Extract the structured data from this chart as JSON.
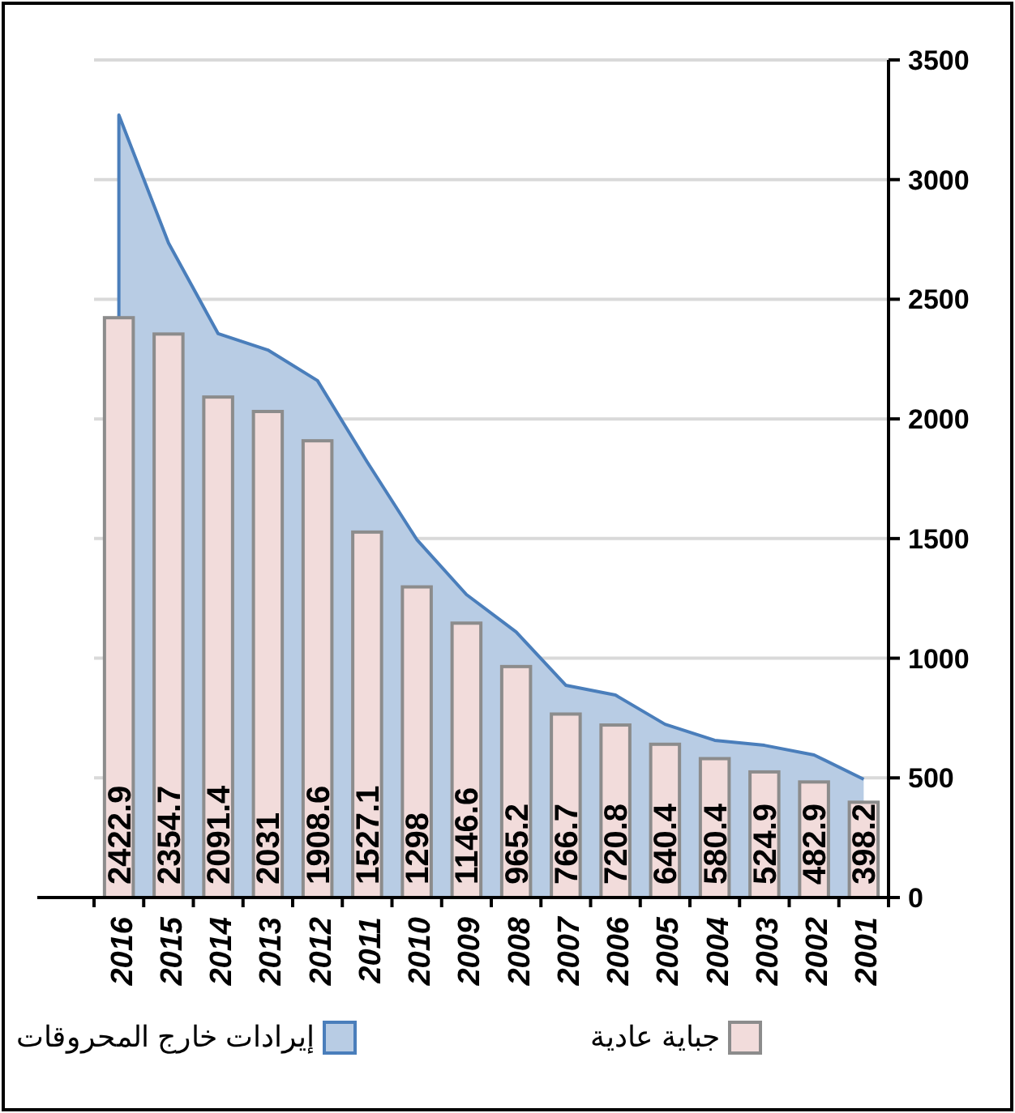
{
  "chart_data": {
    "type": "bar",
    "categories": [
      "2016",
      "2015",
      "2014",
      "2013",
      "2012",
      "2011",
      "2010",
      "2009",
      "2008",
      "2007",
      "2006",
      "2005",
      "2004",
      "2003",
      "2002",
      "2001"
    ],
    "series": [
      {
        "name": "إيرادات خارج المحروقات",
        "type": "area",
        "color": "#b8cce4",
        "values": [
          3270,
          2735,
          2356,
          2288,
          2160,
          1820,
          1496,
          1266,
          1110,
          887,
          846,
          724,
          657,
          636,
          596,
          494
        ]
      },
      {
        "name": "جباية عادية",
        "color": "#f2dcdb",
        "values": [
          2422.9,
          2354.7,
          2091.4,
          2031,
          1908.6,
          1527.1,
          1298,
          1146.6,
          965.2,
          766.7,
          720.8,
          640.4,
          580.4,
          524.9,
          482.9,
          398.2
        ],
        "value_labels": [
          "2422.9",
          "2354.7",
          "2091.4",
          "2031",
          "1908.6",
          "1527.1",
          "1298",
          "1146.6",
          "965.2",
          "766.7",
          "720.8",
          "640.4",
          "580.4",
          "524.9",
          "482.9",
          "398.2"
        ]
      }
    ],
    "ylim": [
      0,
      3500
    ],
    "yticks": [
      0,
      500,
      1000,
      1500,
      2000,
      2500,
      3000,
      3500
    ],
    "grid": "y",
    "legend": "bottom"
  }
}
